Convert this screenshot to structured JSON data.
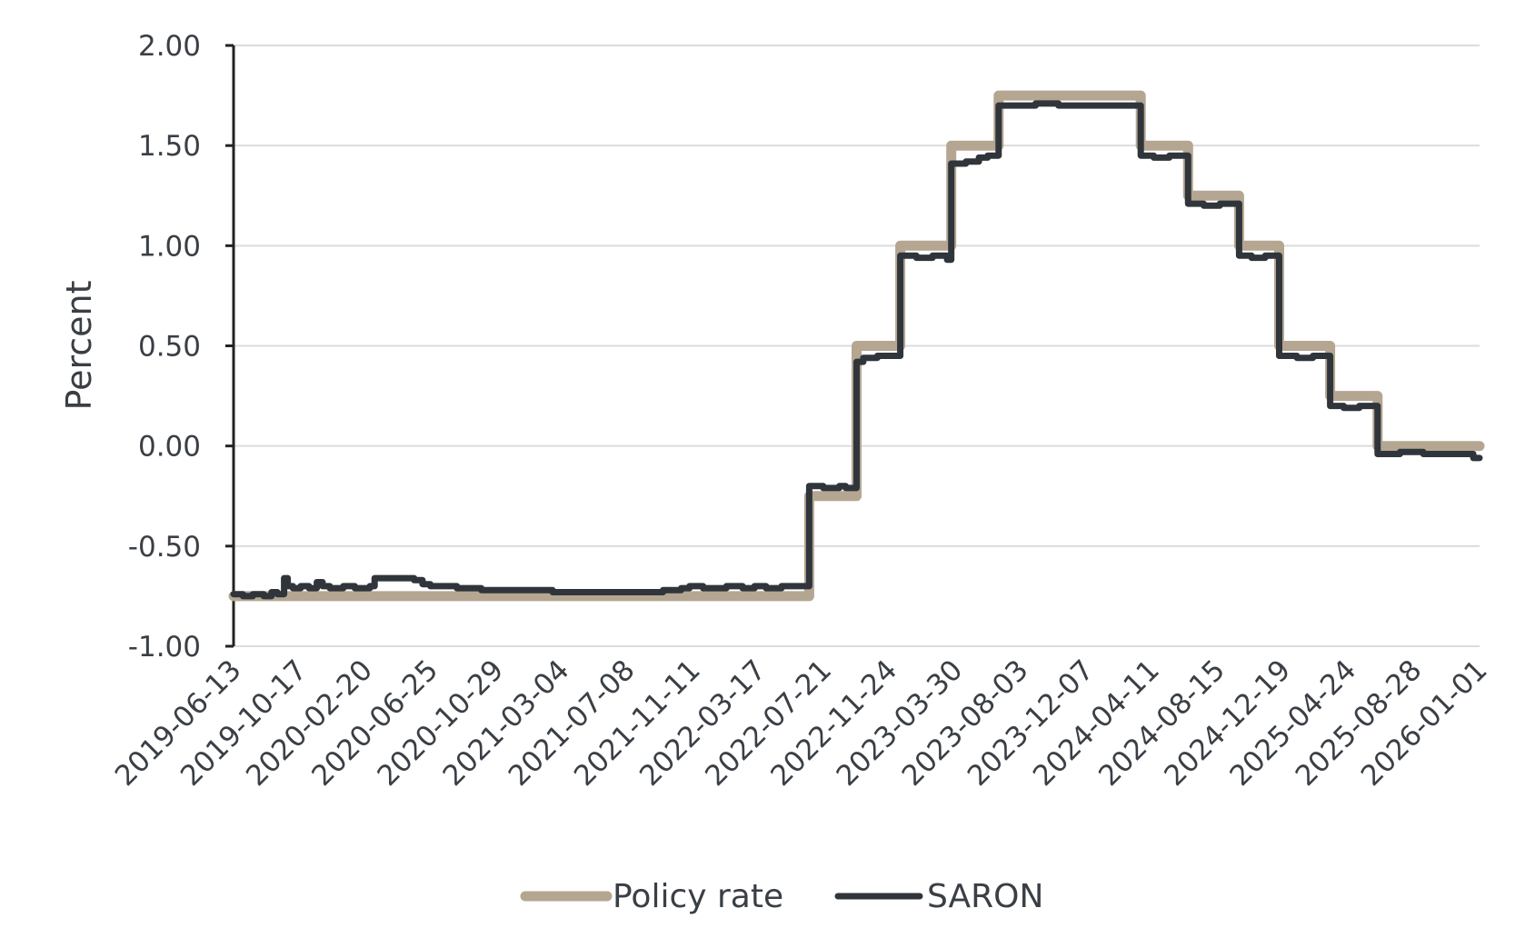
{
  "chart_data": {
    "type": "line",
    "title": "",
    "xlabel": "",
    "ylabel": "Percent",
    "ylim": [
      -1.0,
      2.0
    ],
    "xlim": [
      "2019-06-13",
      "2026-01-01"
    ],
    "y_ticks": [
      "2.00",
      "1.50",
      "1.00",
      "0.50",
      "0.00",
      "-0.50",
      "-1.00"
    ],
    "x_ticks": [
      "2019-06-13",
      "2019-10-17",
      "2020-02-20",
      "2020-06-25",
      "2020-10-29",
      "2021-03-04",
      "2021-07-08",
      "2021-11-11",
      "2022-03-17",
      "2022-07-21",
      "2022-11-24",
      "2023-03-30",
      "2023-08-03",
      "2023-12-07",
      "2024-04-11",
      "2024-08-15",
      "2024-12-19",
      "2025-04-24",
      "2025-08-28",
      "2026-01-01"
    ],
    "grid": true,
    "legend_position": "bottom",
    "series": [
      {
        "name": "Policy rate",
        "color": "#b5a692",
        "step": true,
        "points": [
          [
            "2019-06-13",
            -0.75
          ],
          [
            "2022-06-23",
            -0.25
          ],
          [
            "2022-09-22",
            0.5
          ],
          [
            "2022-12-15",
            1.0
          ],
          [
            "2023-03-23",
            1.5
          ],
          [
            "2023-06-22",
            1.75
          ],
          [
            "2024-03-21",
            1.5
          ],
          [
            "2024-06-20",
            1.25
          ],
          [
            "2024-09-26",
            1.0
          ],
          [
            "2024-12-12",
            0.5
          ],
          [
            "2025-03-20",
            0.25
          ],
          [
            "2025-06-19",
            0.0
          ],
          [
            "2026-01-01",
            0.0
          ]
        ]
      },
      {
        "name": "SARON",
        "color": "#2f353b",
        "step": true,
        "points": [
          [
            "2019-06-13",
            -0.74
          ],
          [
            "2019-07-01",
            -0.75
          ],
          [
            "2019-07-20",
            -0.74
          ],
          [
            "2019-08-10",
            -0.75
          ],
          [
            "2019-08-25",
            -0.73
          ],
          [
            "2019-09-05",
            -0.74
          ],
          [
            "2019-09-18",
            -0.66
          ],
          [
            "2019-09-25",
            -0.7
          ],
          [
            "2019-10-05",
            -0.71
          ],
          [
            "2019-10-20",
            -0.7
          ],
          [
            "2019-11-05",
            -0.71
          ],
          [
            "2019-11-20",
            -0.68
          ],
          [
            "2019-12-01",
            -0.7
          ],
          [
            "2019-12-15",
            -0.71
          ],
          [
            "2020-01-10",
            -0.7
          ],
          [
            "2020-02-01",
            -0.71
          ],
          [
            "2020-03-01",
            -0.7
          ],
          [
            "2020-03-10",
            -0.66
          ],
          [
            "2020-05-25",
            -0.67
          ],
          [
            "2020-06-10",
            -0.69
          ],
          [
            "2020-06-25",
            -0.7
          ],
          [
            "2020-08-15",
            -0.71
          ],
          [
            "2020-10-01",
            -0.72
          ],
          [
            "2021-01-15",
            -0.72
          ],
          [
            "2021-02-15",
            -0.73
          ],
          [
            "2021-06-01",
            -0.73
          ],
          [
            "2021-08-01",
            -0.73
          ],
          [
            "2021-09-15",
            -0.72
          ],
          [
            "2021-10-20",
            -0.71
          ],
          [
            "2021-11-05",
            -0.7
          ],
          [
            "2021-12-01",
            -0.71
          ],
          [
            "2022-01-15",
            -0.7
          ],
          [
            "2022-02-15",
            -0.71
          ],
          [
            "2022-03-10",
            -0.7
          ],
          [
            "2022-04-01",
            -0.71
          ],
          [
            "2022-05-01",
            -0.7
          ],
          [
            "2022-06-23",
            -0.2
          ],
          [
            "2022-07-20",
            -0.21
          ],
          [
            "2022-08-20",
            -0.2
          ],
          [
            "2022-09-01",
            -0.21
          ],
          [
            "2022-09-22",
            0.42
          ],
          [
            "2022-10-05",
            0.44
          ],
          [
            "2022-11-01",
            0.45
          ],
          [
            "2022-12-15",
            0.95
          ],
          [
            "2023-01-15",
            0.94
          ],
          [
            "2023-02-15",
            0.95
          ],
          [
            "2023-03-15",
            0.93
          ],
          [
            "2023-03-23",
            1.41
          ],
          [
            "2023-04-20",
            1.42
          ],
          [
            "2023-05-15",
            1.44
          ],
          [
            "2023-06-01",
            1.45
          ],
          [
            "2023-06-22",
            1.7
          ],
          [
            "2023-09-01",
            1.71
          ],
          [
            "2023-10-15",
            1.7
          ],
          [
            "2024-03-21",
            1.45
          ],
          [
            "2024-04-15",
            1.44
          ],
          [
            "2024-05-15",
            1.45
          ],
          [
            "2024-06-20",
            1.21
          ],
          [
            "2024-07-20",
            1.2
          ],
          [
            "2024-08-20",
            1.21
          ],
          [
            "2024-09-26",
            0.95
          ],
          [
            "2024-10-20",
            0.94
          ],
          [
            "2024-11-15",
            0.95
          ],
          [
            "2024-12-12",
            0.45
          ],
          [
            "2025-01-15",
            0.44
          ],
          [
            "2025-02-15",
            0.45
          ],
          [
            "2025-03-20",
            0.2
          ],
          [
            "2025-04-15",
            0.19
          ],
          [
            "2025-05-15",
            0.2
          ],
          [
            "2025-06-19",
            -0.04
          ],
          [
            "2025-08-01",
            -0.03
          ],
          [
            "2025-09-15",
            -0.04
          ],
          [
            "2025-11-01",
            -0.04
          ],
          [
            "2025-12-20",
            -0.06
          ],
          [
            "2026-01-01",
            -0.06
          ]
        ]
      }
    ]
  }
}
